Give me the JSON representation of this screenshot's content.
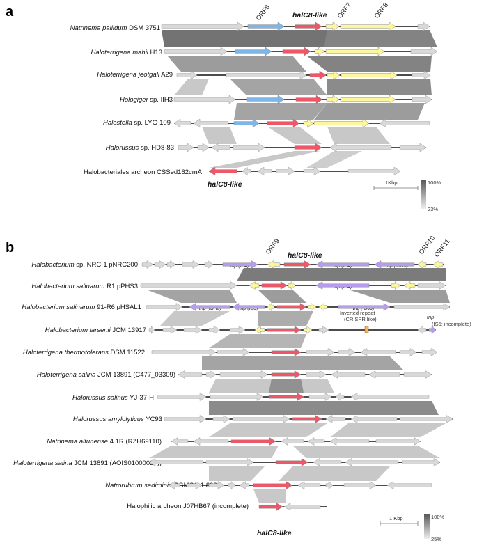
{
  "panel_a": {
    "letter": "a",
    "orf_labels": [
      "ORF6",
      "halC8-like",
      "ORF7",
      "ORF8"
    ],
    "bottom_label": "halC8-like",
    "scale": "1Kbp",
    "legend_max": "100%",
    "legend_min": "23%",
    "rows": [
      {
        "sp": "Natrinema pallidum",
        "rest": " DSM 3751"
      },
      {
        "sp": "Haloterrigena mahii",
        "rest": " H13"
      },
      {
        "sp": "Haloterrigena jeotgali",
        "rest": " A29"
      },
      {
        "sp": "Hologiger",
        "rest": " sp. IIH3"
      },
      {
        "sp": "Halostella",
        "rest": " sp. LYG-109"
      },
      {
        "sp": "Halorussus",
        "rest": " sp. HD8-83"
      },
      {
        "sp": "",
        "rest": "Halobacteriales archeon CSSed162cmA"
      }
    ]
  },
  "panel_b": {
    "letter": "b",
    "orf_labels": [
      "ORF9",
      "halC8-like",
      "ORF10",
      "ORF11"
    ],
    "bottom_label": "halC8-like",
    "scale": "1 Kbp",
    "legend_max": "100%",
    "legend_min": "25%",
    "annot_inverted_1": "Inverted repeat",
    "annot_inverted_2": "(CRISPR like)",
    "annot_tnp": "tnp",
    "annot_tnp_sub": "(IS5; incomplete)",
    "tnp_labels": {
      "r0a": "tnp (IS4)",
      "r0b": "tnp (IS4)",
      "r0c": "tnp (ISH3)",
      "r1a": "tnp (IS4)",
      "r2a": "tnp (ISH3)",
      "r2b": "tnp (IS5)",
      "r2c": "tnp (IS66)"
    },
    "rows": [
      {
        "sp": "Halobacterium",
        "rest": " sp. NRC-1 pNRC200"
      },
      {
        "sp": "Halobacterium salinarum",
        "rest": " R1 pPHS3"
      },
      {
        "sp": "Halobacterium salinarum",
        "rest": " 91-R6 pHSAL1"
      },
      {
        "sp": "Halobacterium larsenii",
        "rest": " JCM 13917"
      },
      {
        "sp": "Haloterrigena thermotolerans",
        "rest": " DSM 11522"
      },
      {
        "sp": "Haloterrigena salina",
        "rest": " JCM 13891 (C477_03309)"
      },
      {
        "sp": "Halorussus salinus",
        "rest": " YJ-37-H"
      },
      {
        "sp": "Halorussus amylolyticus",
        "rest": " YC93"
      },
      {
        "sp": "Natrinema altunense",
        "rest": " 4.1R (RZH69110)"
      },
      {
        "sp": "Haloterrigena salina",
        "rest": " JCM 13891 (AOIS01000027))"
      },
      {
        "sp": "Natrorubrum sediminis",
        "rest": " CGMCC 1.8981"
      },
      {
        "sp": "",
        "rest": "Halophilic archeon J07HB67 (incomplete)"
      }
    ]
  },
  "colors": {
    "gene_grey": "#d9d9d9",
    "gene_stroke": "#9a9a9a",
    "blue": "#7eb6ea",
    "red": "#ee5768",
    "yellow": "#fcf79a",
    "purple": "#b89cf0",
    "orange": "#f0b462",
    "link_dark": "#5a5a5a",
    "link_light": "#c2c2c2"
  }
}
